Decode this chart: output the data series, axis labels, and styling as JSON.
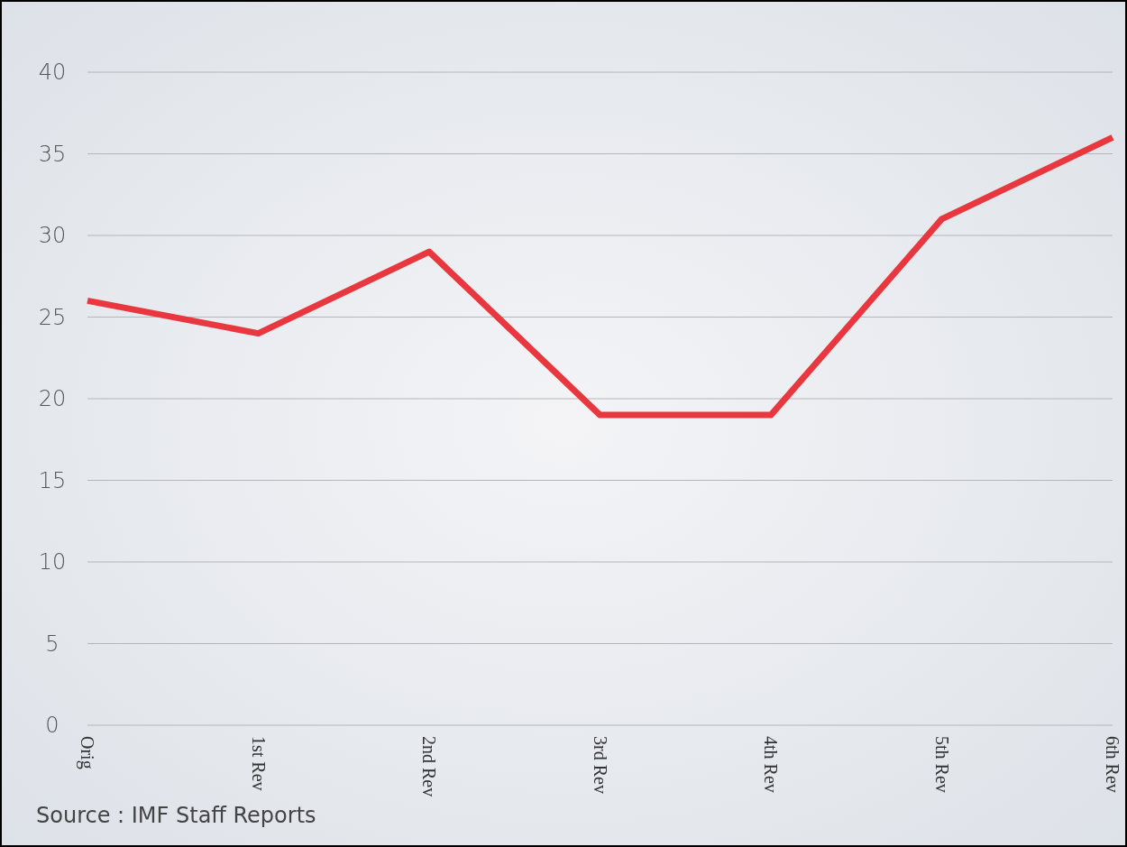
{
  "chart_data": {
    "type": "line",
    "categories": [
      "Orig",
      "1st Rev",
      "2nd Rev",
      "3rd Rev",
      "4th Rev",
      "5th Rev",
      "6th Rev"
    ],
    "series": [
      {
        "color": "#e8373e",
        "values": [
          26,
          24,
          29,
          19,
          19,
          31,
          36
        ]
      }
    ],
    "ylim": [
      0,
      40
    ],
    "yticks": [
      0,
      5,
      10,
      15,
      20,
      25,
      30,
      35,
      40
    ],
    "grid": "y",
    "marker": "none",
    "line_style": "solid",
    "annotations": [
      "Source : IMF Staff Reports"
    ]
  }
}
